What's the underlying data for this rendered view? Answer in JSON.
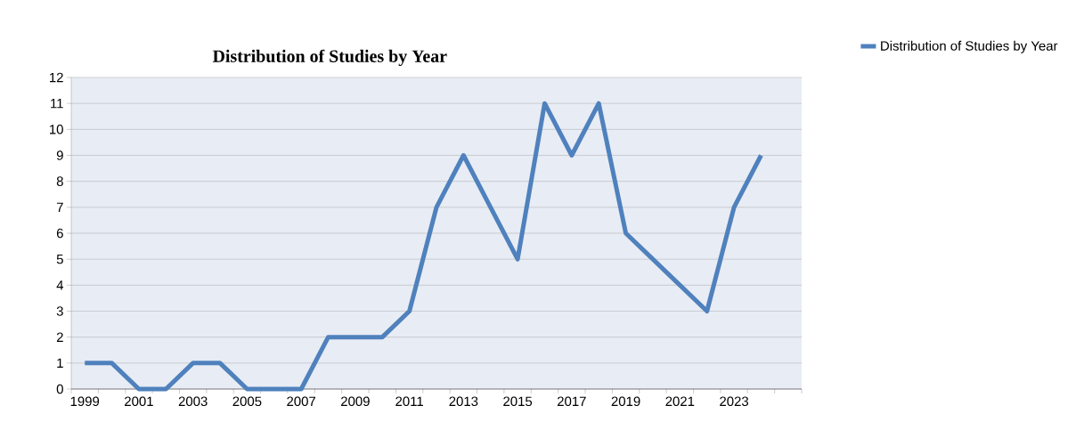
{
  "chart_data": {
    "type": "line",
    "title": "Distribution of Studies by Year",
    "categories": [
      "1999",
      null,
      "2001",
      null,
      "2003",
      null,
      "2005",
      null,
      "2007",
      null,
      "2009",
      null,
      "2011",
      null,
      "2013",
      null,
      "2015",
      null,
      "2017",
      null,
      "2019",
      null,
      "2021",
      null,
      "2023",
      null,
      null
    ],
    "series": [
      {
        "name": "Distribution of Studies by Year",
        "color": "#4f81bd",
        "values": [
          1,
          1,
          0,
          0,
          1,
          1,
          0,
          0,
          0,
          2,
          2,
          2,
          3,
          7,
          9,
          7,
          5,
          11,
          9,
          11,
          6,
          5,
          4,
          3,
          7,
          9,
          null
        ]
      }
    ],
    "ylim": [
      0,
      12
    ],
    "yticks": [
      0,
      1,
      2,
      3,
      4,
      5,
      6,
      7,
      8,
      9,
      10,
      11,
      12
    ],
    "grid": "y",
    "legend": "top right",
    "marker": "none",
    "line_style": "solid"
  }
}
